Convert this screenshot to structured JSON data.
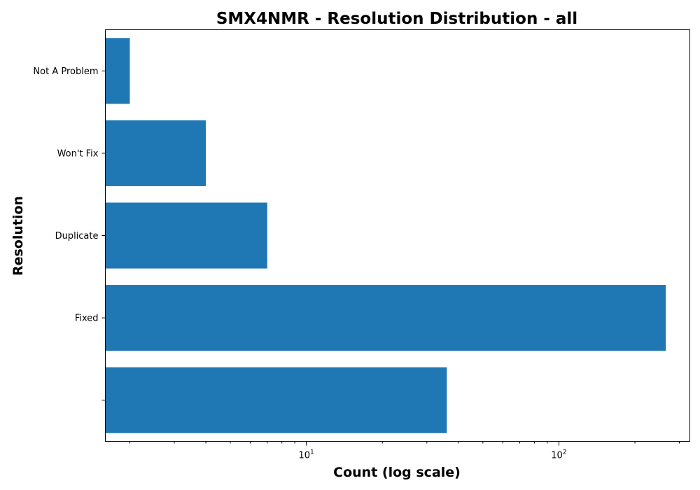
{
  "chart_data": {
    "type": "bar",
    "orientation": "horizontal",
    "title": "SMX4NMR - Resolution Distribution - all",
    "xlabel": "Count (log scale)",
    "ylabel": "Resolution",
    "x_scale": "log",
    "xlim": [
      1.6,
      330
    ],
    "x_major_ticks": [
      {
        "value": 10,
        "base": "10",
        "exp": "1"
      },
      {
        "value": 100,
        "base": "10",
        "exp": "2"
      }
    ],
    "categories": [
      "",
      "Fixed",
      "Duplicate",
      "Won't Fix",
      "Not A Problem"
    ],
    "values": [
      36,
      265,
      7,
      4,
      2
    ],
    "bar_color": "#1f77b4",
    "grid": false,
    "legend": "none"
  }
}
